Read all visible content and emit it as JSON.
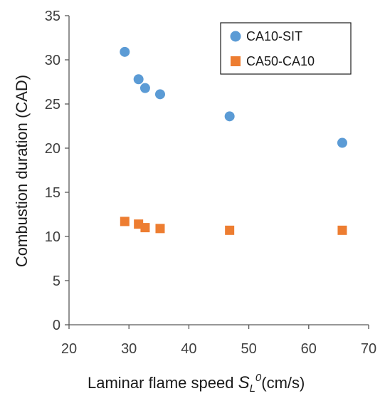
{
  "chart_data": {
    "type": "scatter",
    "xlabel_main": "Laminar flame speed ",
    "xlabel_symbol": "S",
    "xlabel_sub": "L",
    "xlabel_sup": "0",
    "xlabel_unit": "(cm/s)",
    "ylabel": "Combustion  duration (CAD)",
    "xlim": [
      20,
      70
    ],
    "ylim": [
      0,
      35
    ],
    "xticks": [
      20,
      30,
      40,
      50,
      60,
      70
    ],
    "yticks": [
      0,
      5,
      10,
      15,
      20,
      25,
      30,
      35
    ],
    "grid": false,
    "legend_position": "top-right",
    "series": [
      {
        "name": "CA10-SIT",
        "marker": "circle",
        "color": "#5B9BD5",
        "points": [
          {
            "x": 29.3,
            "y": 30.9
          },
          {
            "x": 31.6,
            "y": 27.8
          },
          {
            "x": 32.7,
            "y": 26.8
          },
          {
            "x": 35.2,
            "y": 26.1
          },
          {
            "x": 46.8,
            "y": 23.6
          },
          {
            "x": 65.6,
            "y": 20.6
          }
        ]
      },
      {
        "name": "CA50-CA10",
        "marker": "square",
        "color": "#ED7D31",
        "points": [
          {
            "x": 29.3,
            "y": 11.7
          },
          {
            "x": 31.6,
            "y": 11.4
          },
          {
            "x": 32.7,
            "y": 11.0
          },
          {
            "x": 35.2,
            "y": 10.9
          },
          {
            "x": 46.8,
            "y": 10.7
          },
          {
            "x": 65.6,
            "y": 10.7
          }
        ]
      }
    ]
  }
}
